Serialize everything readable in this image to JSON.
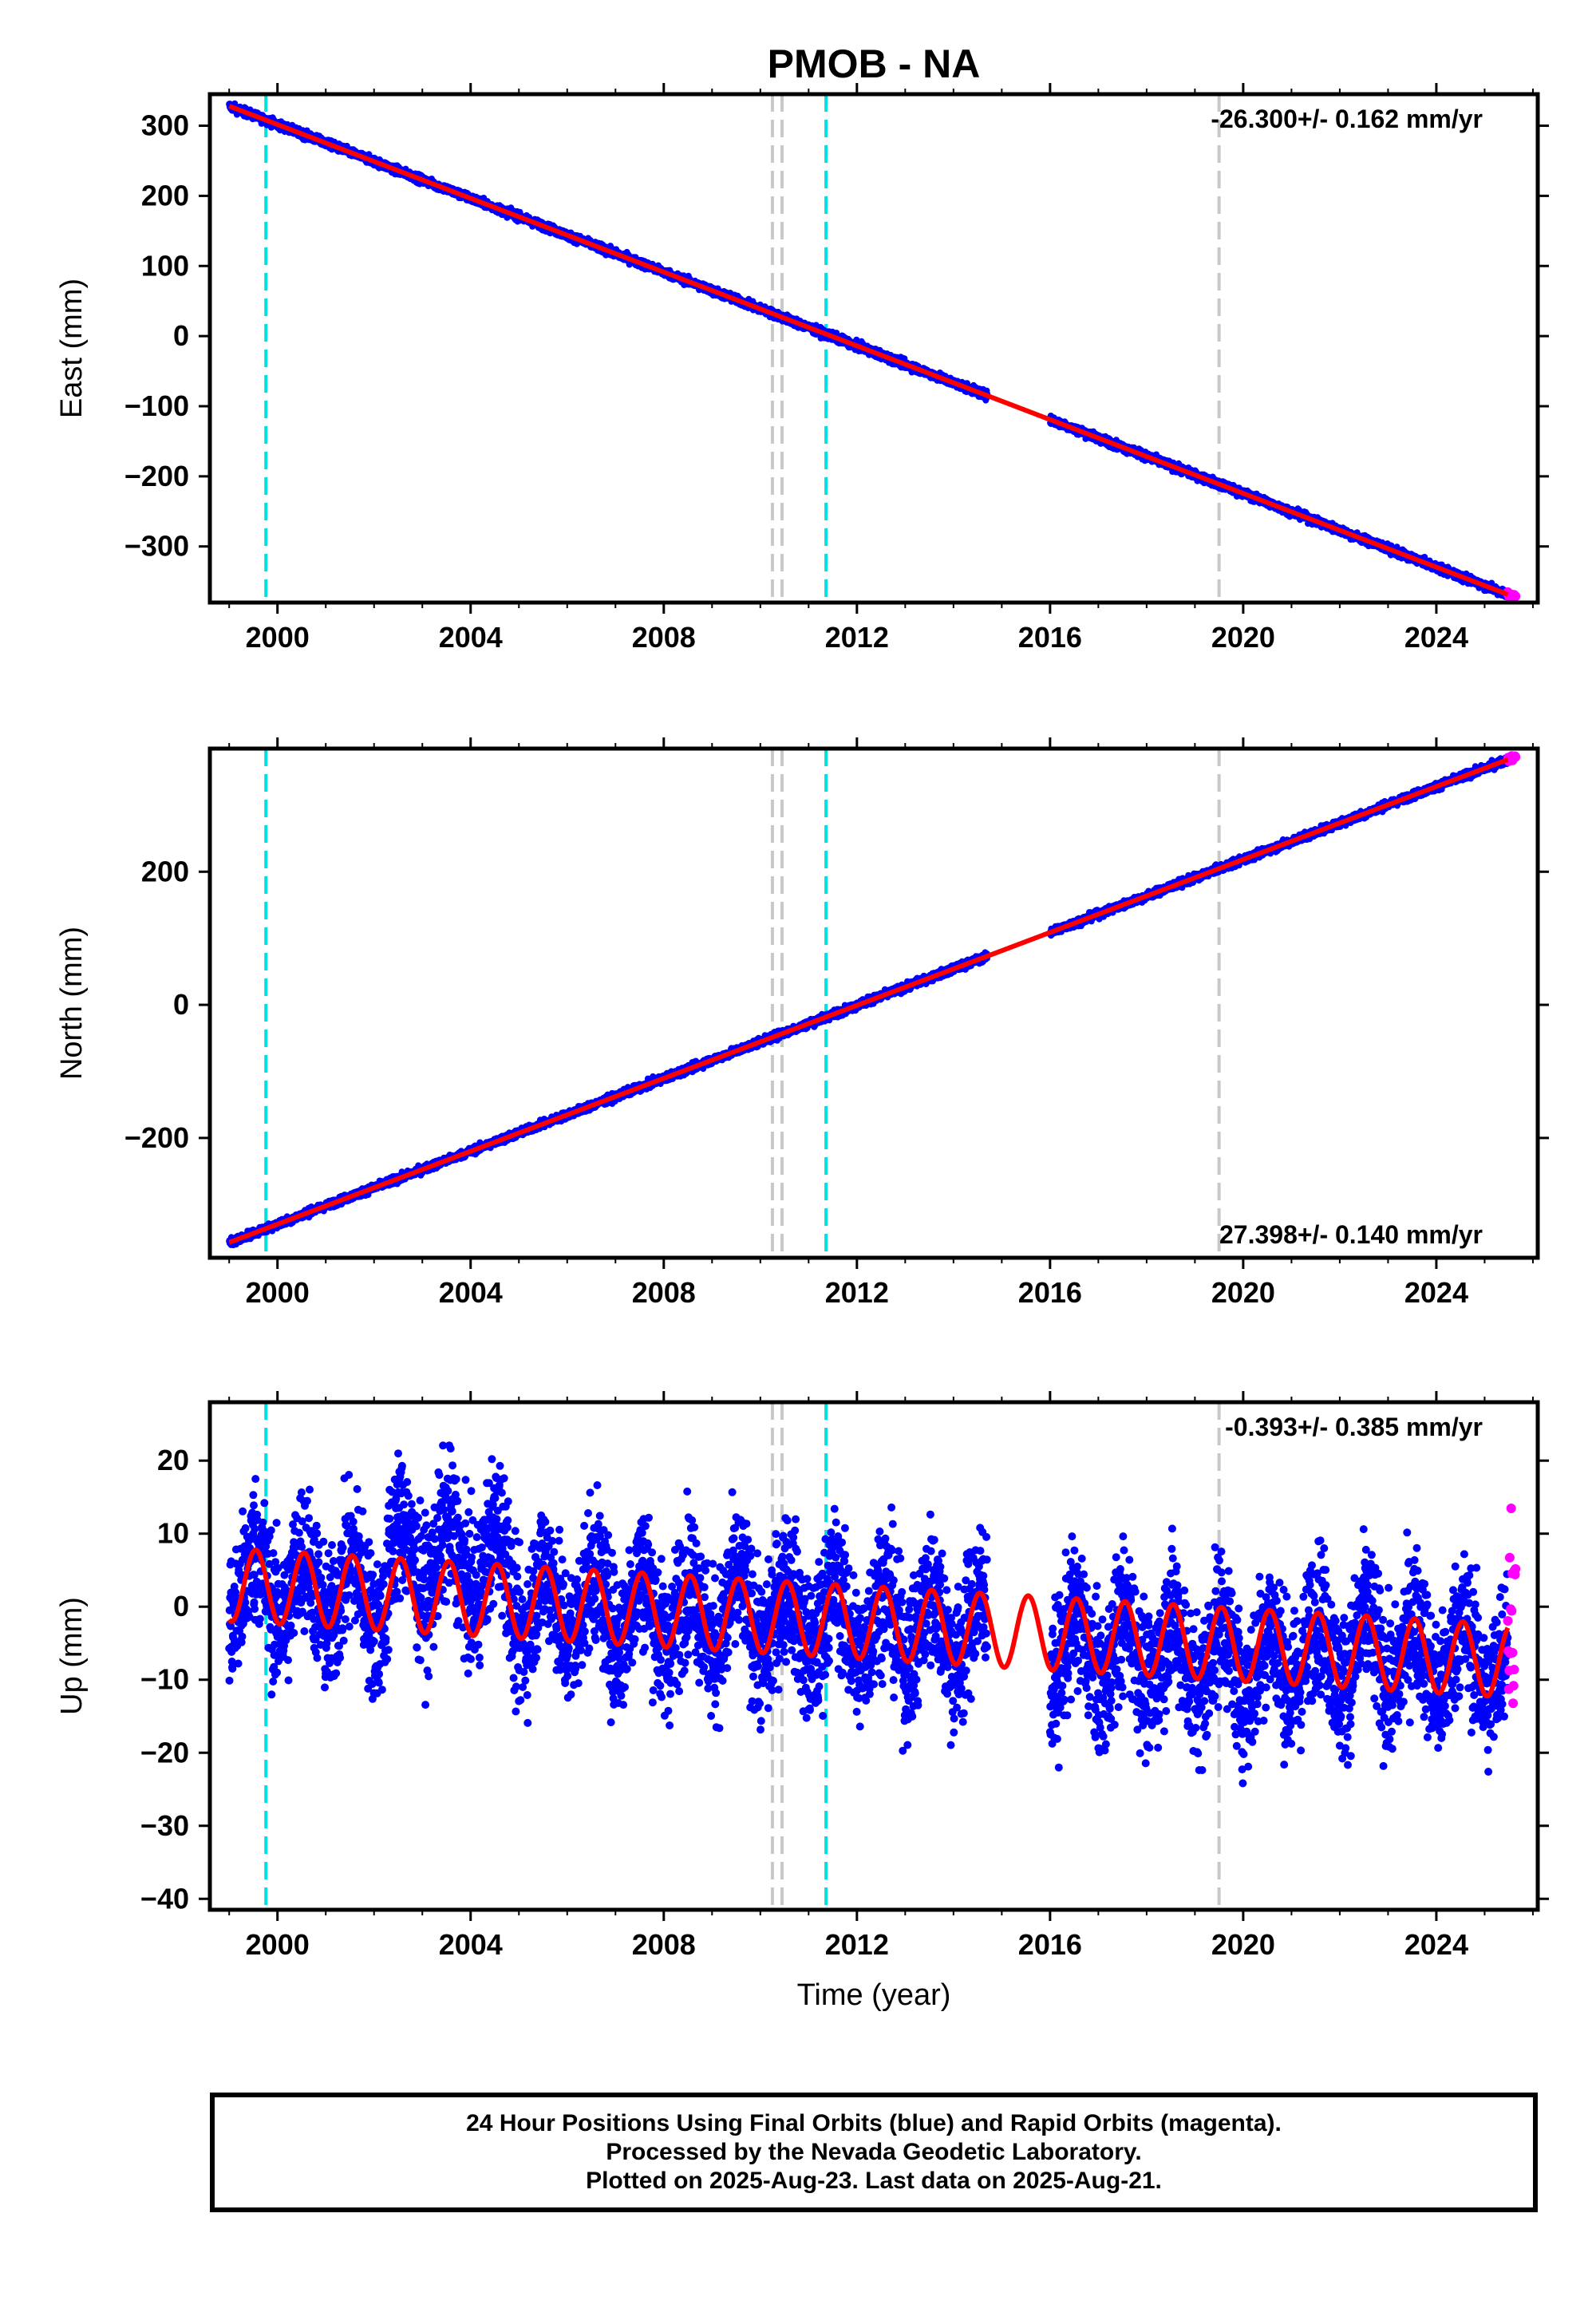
{
  "title": "PMOB - NA",
  "x_axis_label": "Time (year)",
  "footer": {
    "line1": "24 Hour Positions Using Final Orbits (blue) and Rapid Orbits (magenta).",
    "line2": "Processed by the Nevada Geodetic Laboratory.",
    "line3": "Plotted on 2025-Aug-23. Last data on 2025-Aug-21."
  },
  "colors": {
    "final_orbits": "#0000ff",
    "rapid_orbits": "#ff00ff",
    "model_fit": "#ff0000",
    "offset_equipment": "#00e0e0",
    "offset_other": "#c8c8c8"
  },
  "chart_data": [
    {
      "type": "scatter",
      "ylabel": "East (mm)",
      "rate_label": "-26.300+/- 0.162 mm/yr",
      "rate_label_position": "top-right",
      "xlim": [
        1998.6,
        2026.1
      ],
      "ylim": [
        -380,
        345
      ],
      "xticks": [
        2000,
        2004,
        2008,
        2012,
        2016,
        2020,
        2024
      ],
      "yticks": [
        300,
        200,
        100,
        0,
        -100,
        -200,
        -300
      ],
      "ytick_labels": [
        "300",
        "200",
        "100",
        "0",
        "−100",
        "−200",
        "−300"
      ],
      "trend": {
        "start_year": 1999.0,
        "start_value": 328,
        "rate_mm_per_yr": -26.3
      },
      "final_span": [
        1999.0,
        2025.48
      ],
      "data_gap": [
        2014.7,
        2016.0
      ],
      "rapid_span": [
        2025.48,
        2025.64
      ],
      "noise_mm": 3,
      "offsets_equipment": [
        1999.76,
        2011.36
      ],
      "offsets_other": [
        2010.25,
        2010.45,
        2019.5
      ]
    },
    {
      "type": "scatter",
      "ylabel": "North (mm)",
      "rate_label": "27.398+/- 0.140 mm/yr",
      "rate_label_position": "bottom-right",
      "xlim": [
        1998.6,
        2026.1
      ],
      "ylim": [
        -380,
        385
      ],
      "xticks": [
        2000,
        2004,
        2008,
        2012,
        2016,
        2020,
        2024
      ],
      "yticks": [
        200,
        0,
        -200
      ],
      "ytick_labels": [
        "200",
        "0",
        "−200"
      ],
      "trend": {
        "start_year": 1999.0,
        "start_value": -357,
        "rate_mm_per_yr": 27.398
      },
      "final_span": [
        1999.0,
        2025.48
      ],
      "data_gap": [
        2014.7,
        2016.0
      ],
      "rapid_span": [
        2025.48,
        2025.64
      ],
      "noise_mm": 3,
      "offsets_equipment": [
        1999.76,
        2011.36
      ],
      "offsets_other": [
        2010.25,
        2010.45,
        2019.5
      ]
    },
    {
      "type": "scatter",
      "ylabel": "Up (mm)",
      "rate_label": "-0.393+/- 0.385 mm/yr",
      "rate_label_position": "top-right",
      "xlim": [
        1998.6,
        2026.1
      ],
      "ylim": [
        -41.5,
        28
      ],
      "xticks": [
        2000,
        2004,
        2008,
        2012,
        2016,
        2020,
        2024
      ],
      "yticks": [
        20,
        10,
        0,
        -10,
        -20,
        -30,
        -40
      ],
      "ytick_labels": [
        "20",
        "10",
        "0",
        "−10",
        "−20",
        "−30",
        "−40"
      ],
      "trend": {
        "start_year": 1999.0,
        "start_value": 3,
        "rate_mm_per_yr": -0.393
      },
      "annual_amplitude_mm": 5,
      "final_span": [
        1999.0,
        2025.48
      ],
      "data_gap": [
        2014.7,
        2016.0
      ],
      "rapid_span": [
        2025.48,
        2025.64
      ],
      "noise_mm": 5,
      "offsets_equipment": [
        1999.76,
        2011.36
      ],
      "offsets_other": [
        2010.25,
        2010.45,
        2019.5
      ]
    }
  ]
}
